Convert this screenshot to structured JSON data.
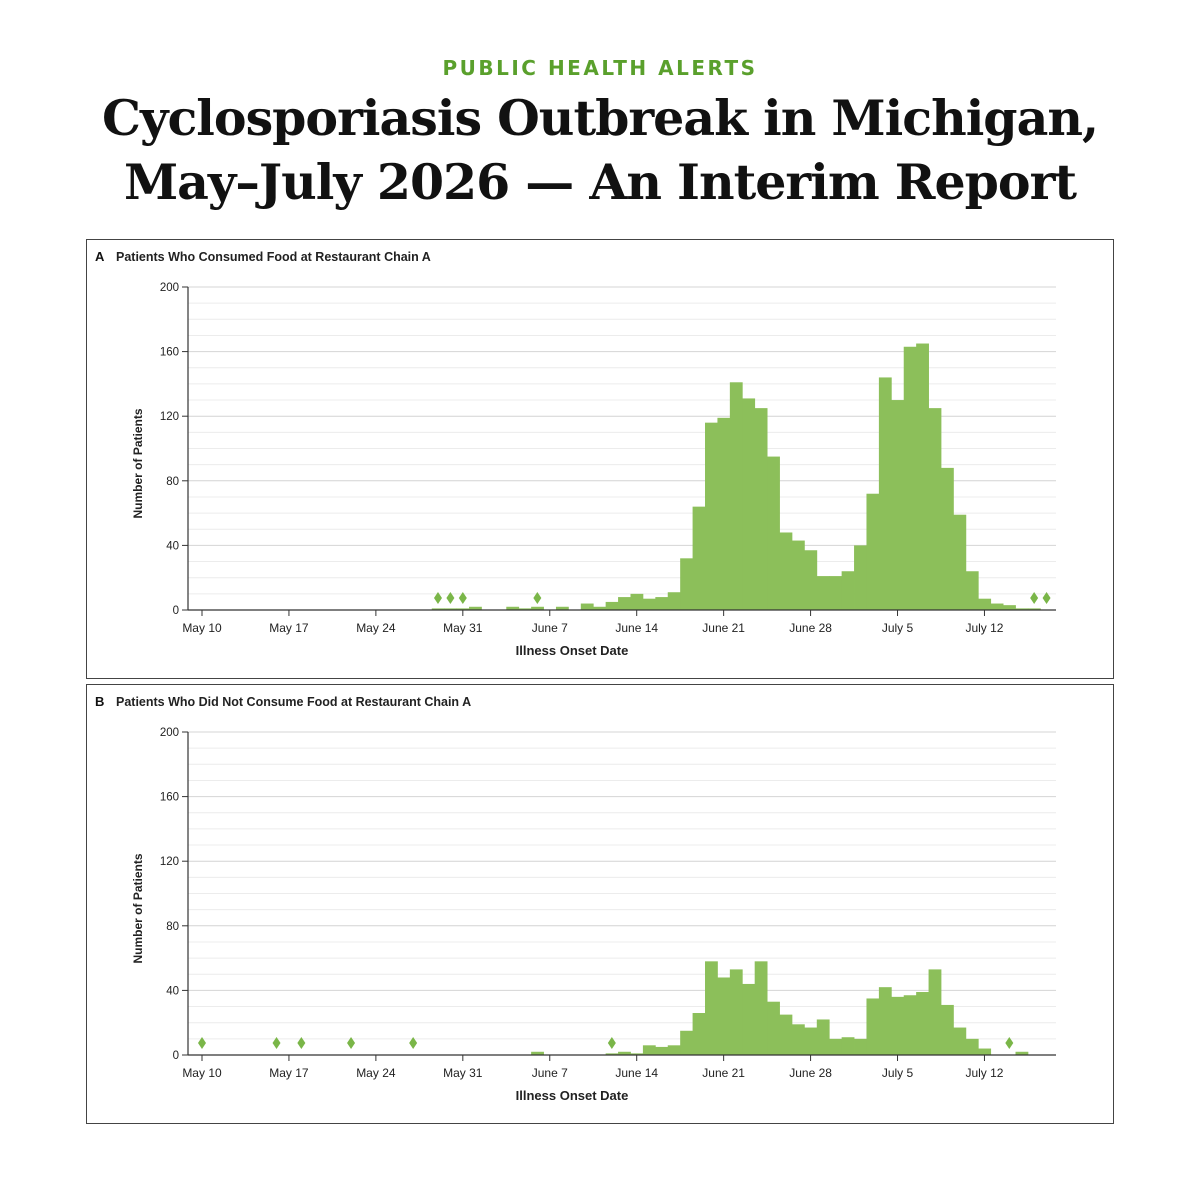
{
  "kicker": "PUBLIC HEALTH ALERTS",
  "title_line1": "Cyclosporiasis Outbreak in Michigan,",
  "title_line2": "May–July 2026 — An Interim Report",
  "colors": {
    "bar": "#8cbf5a",
    "marker": "#7ab648",
    "kicker": "#5aa02c",
    "grid": "#dddddd"
  },
  "chart_data": [
    {
      "type": "bar",
      "panel_label": "A",
      "title": "Patients Who Consumed Food at Restaurant Chain A",
      "xlabel": "Illness Onset Date",
      "ylabel": "Number of Patients",
      "ylim": [
        0,
        200
      ],
      "yticks": [
        0,
        40,
        80,
        120,
        160,
        200
      ],
      "grid": true,
      "x_start": "May 10",
      "x_ticks": [
        "May 10",
        "May 17",
        "May 24",
        "May 31",
        "June 7",
        "June 14",
        "June 21",
        "June 28",
        "July 5",
        "July 12"
      ],
      "values": [
        0,
        0,
        0,
        0,
        0,
        0,
        0,
        0,
        0,
        0,
        0,
        0,
        0,
        0,
        0,
        0,
        0,
        0,
        0,
        1,
        1,
        1,
        2,
        0,
        0,
        2,
        1,
        2,
        0,
        2,
        0,
        4,
        2,
        5,
        8,
        10,
        7,
        8,
        11,
        32,
        64,
        116,
        119,
        141,
        131,
        125,
        95,
        48,
        43,
        37,
        21,
        21,
        24,
        40,
        72,
        144,
        130,
        163,
        165,
        125,
        88,
        59,
        24,
        7,
        4,
        3,
        1,
        1
      ],
      "markers": [
        "May 29",
        "May 30",
        "May 31",
        "June 6",
        "July 16",
        "July 17"
      ]
    },
    {
      "type": "bar",
      "panel_label": "B",
      "title": "Patients Who Did Not Consume Food at Restaurant Chain A",
      "xlabel": "Illness Onset Date",
      "ylabel": "Number of Patients",
      "ylim": [
        0,
        200
      ],
      "yticks": [
        0,
        40,
        80,
        120,
        160,
        200
      ],
      "grid": true,
      "x_start": "May 10",
      "x_ticks": [
        "May 10",
        "May 17",
        "May 24",
        "May 31",
        "June 7",
        "June 14",
        "June 21",
        "June 28",
        "July 5",
        "July 12"
      ],
      "values": [
        0,
        0,
        0,
        0,
        0,
        0,
        0,
        0,
        0,
        0,
        0,
        0,
        0,
        0,
        0,
        0,
        0,
        0,
        0,
        0,
        0,
        0,
        0,
        0,
        0,
        0,
        0,
        2,
        0,
        0,
        0,
        0,
        0,
        1,
        2,
        1,
        6,
        5,
        6,
        15,
        26,
        58,
        48,
        53,
        44,
        58,
        33,
        25,
        19,
        17,
        22,
        10,
        11,
        10,
        35,
        42,
        36,
        37,
        39,
        53,
        31,
        17,
        10,
        4,
        0,
        0,
        2,
        0
      ],
      "markers": [
        "May 10",
        "May 16",
        "May 18",
        "May 22",
        "May 27",
        "June 12",
        "July 14"
      ]
    }
  ]
}
